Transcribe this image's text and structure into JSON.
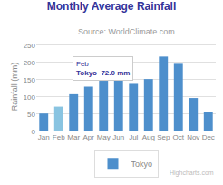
{
  "chart_data": {
    "type": "bar",
    "title": "Monthly Average Rainfall",
    "subtitle": "Source: WorldClimate.com",
    "ylabel": "Rainfall (mm)",
    "categories": [
      "Jan",
      "Feb",
      "Mar",
      "Apr",
      "May",
      "Jun",
      "Jul",
      "Aug",
      "Sep",
      "Oct",
      "Nov",
      "Dec"
    ],
    "series": [
      {
        "name": "Tokyo",
        "values": [
          52,
          72,
          108,
          130,
          147,
          180,
          138,
          152,
          217,
          196,
          97,
          56
        ],
        "colors": [
          "#4d8fcc",
          "#89c4e1",
          "#4d8fcc",
          "#4d8fcc",
          "#4d8fcc",
          "#4d8fcc",
          "#4d8fcc",
          "#4d8fcc",
          "#4d8fcc",
          "#4d8fcc",
          "#4d8fcc",
          "#4d8fcc"
        ]
      }
    ],
    "ylim": [
      0,
      260
    ],
    "yticks": [
      0,
      50,
      100,
      150,
      200,
      250
    ],
    "grid": true,
    "legend": "bottom",
    "annotations": [
      "Feb",
      "Tokyo  72.0 mm",
      "Highcharts.com"
    ]
  }
}
